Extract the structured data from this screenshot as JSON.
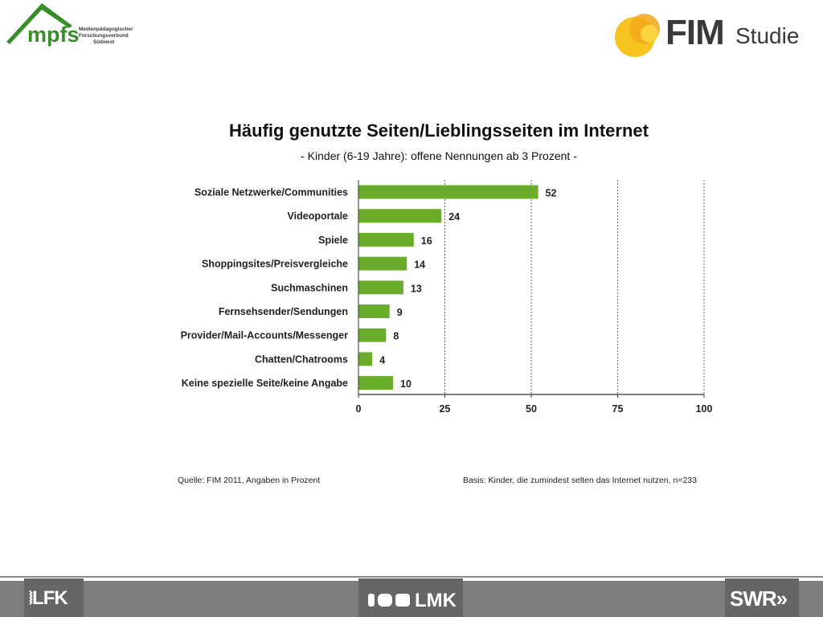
{
  "logos": {
    "mpfs_word": "mpfs",
    "mpfs_sub": [
      "Medienpädagogischer",
      "Forschungsverbund",
      "Südwest"
    ],
    "fim_word": "FIM",
    "studie_word": "Studie",
    "colors": {
      "mpfs_green": "#3a8e2a",
      "fim_yellow": "#f7c41f",
      "fim_orange": "#f2a81a"
    }
  },
  "chart_data": {
    "type": "bar",
    "orientation": "horizontal",
    "title": "Häufig genutzte Seiten/Lieblingsseiten im Internet",
    "subtitle": "- Kinder (6-19 Jahre): offene Nennungen ab 3 Prozent -",
    "categories": [
      "Soziale Netzwerke/Communities",
      "Videoportale",
      "Spiele",
      "Shoppingsites/Preisvergleiche",
      "Suchmaschinen",
      "Fernsehsender/Sendungen",
      "Provider/Mail-Accounts/Messenger",
      "Chatten/Chatrooms",
      "Keine spezielle Seite/keine  Angabe"
    ],
    "values": [
      52,
      24,
      16,
      14,
      13,
      9,
      8,
      4,
      10
    ],
    "xlim": [
      0,
      100
    ],
    "xticks": [
      0,
      25,
      50,
      75,
      100
    ],
    "grid": "vertical dashed",
    "bar_color": "#6aad2b"
  },
  "notes": {
    "source": "Quelle: FIM 2011,  Angaben in Prozent",
    "basis": "Basis: Kinder, die zumindest selten das Internet nutzen, n=233"
  },
  "footer": {
    "lfk": "LFK",
    "lmk": "LMK",
    "swr": "SWR"
  }
}
